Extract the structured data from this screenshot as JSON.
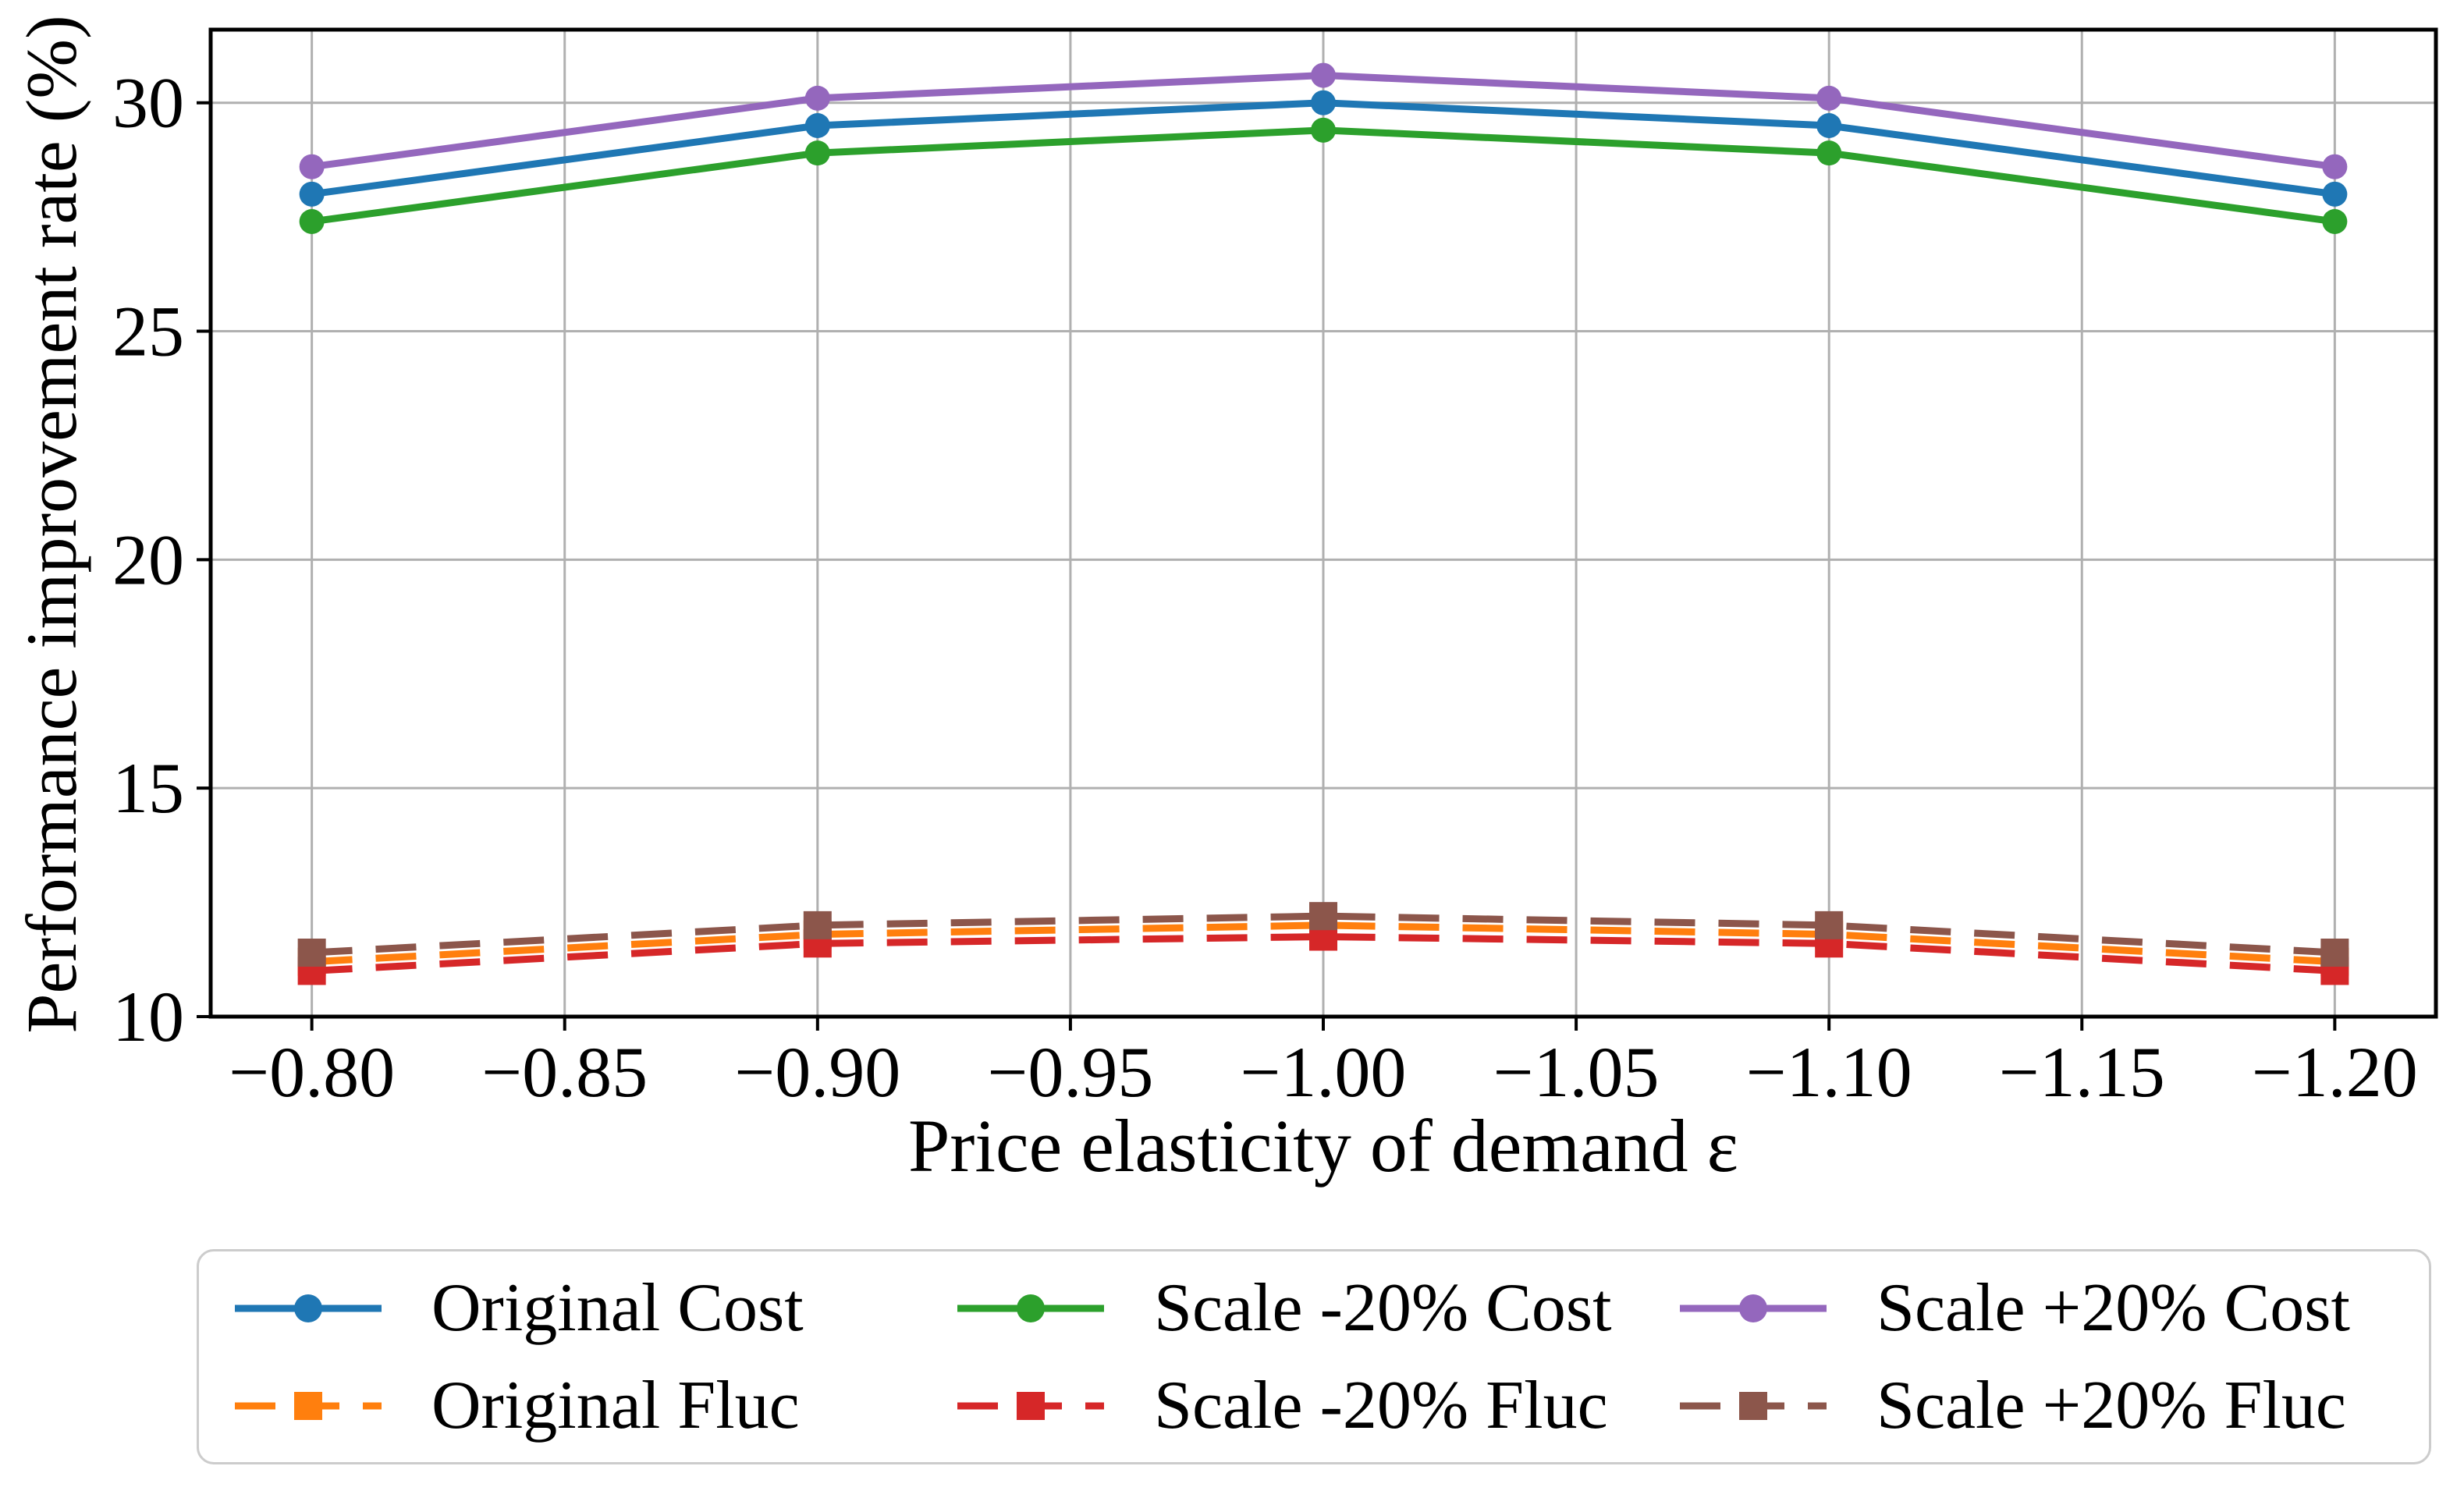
{
  "figure": {
    "background": "#ffffff",
    "text_color": "#000000"
  },
  "chart_data": {
    "type": "line",
    "title": "",
    "xlabel": "Price elasticity of demand ε",
    "ylabel": "Performance improvement rate (%)",
    "x": [
      -0.8,
      -0.9,
      -1.0,
      -1.1,
      -1.2
    ],
    "xlim": [
      -0.78,
      -1.22
    ],
    "ylim": [
      10,
      31.6
    ],
    "x_ticks": [
      -0.8,
      -0.85,
      -0.9,
      -0.95,
      -1.0,
      -1.05,
      -1.1,
      -1.15,
      -1.2
    ],
    "x_tick_labels": [
      "−0.80",
      "−0.85",
      "−0.90",
      "−0.95",
      "−1.00",
      "−1.05",
      "−1.10",
      "−1.15",
      "−1.20"
    ],
    "y_ticks": [
      10,
      15,
      20,
      25,
      30
    ],
    "y_tick_labels": [
      "10",
      "15",
      "20",
      "25",
      "30"
    ],
    "grid": true,
    "grid_color": "#b0b0b0",
    "axis_color": "#000000",
    "legend_position": "below-chart, 3 columns, 2 rows",
    "series": [
      {
        "name": "Original Cost",
        "color": "#1f77b4",
        "line_style": "solid",
        "marker": "circle",
        "values": [
          28.0,
          29.5,
          30.0,
          29.5,
          28.0
        ]
      },
      {
        "name": "Original Fluc",
        "color": "#ff7f0e",
        "line_style": "dashed",
        "marker": "square",
        "values": [
          11.2,
          11.8,
          12.0,
          11.8,
          11.2
        ]
      },
      {
        "name": "Scale -20% Cost",
        "color": "#2ca02c",
        "line_style": "solid",
        "marker": "circle",
        "values": [
          27.4,
          28.9,
          29.4,
          28.9,
          27.4
        ]
      },
      {
        "name": "Scale -20% Fluc",
        "color": "#d62728",
        "line_style": "dashed",
        "marker": "square",
        "values": [
          11.0,
          11.6,
          11.75,
          11.6,
          11.0
        ]
      },
      {
        "name": "Scale +20% Cost",
        "color": "#9467bd",
        "line_style": "solid",
        "marker": "circle",
        "values": [
          28.6,
          30.1,
          30.6,
          30.1,
          28.6
        ]
      },
      {
        "name": "Scale +20% Fluc",
        "color": "#8c564b",
        "line_style": "dashed",
        "marker": "square",
        "values": [
          11.4,
          12.0,
          12.2,
          12.0,
          11.4
        ]
      }
    ]
  }
}
